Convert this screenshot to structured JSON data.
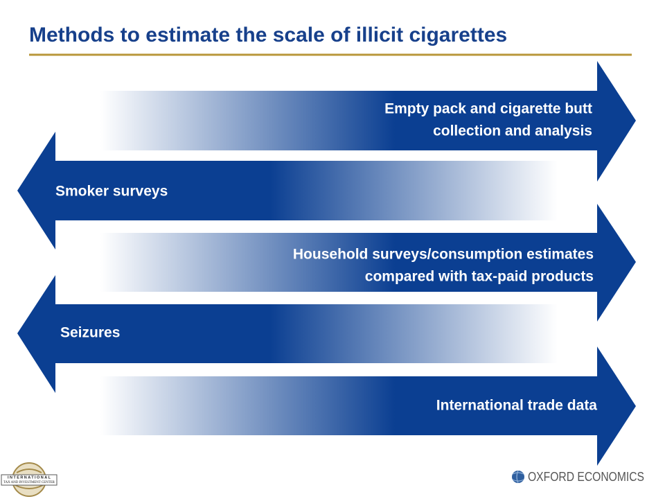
{
  "title": "Methods to estimate the scale of illicit cigarettes",
  "arrows": [
    {
      "lines": [
        "Empty pack and cigarette butt",
        "collection and analysis"
      ]
    },
    {
      "lines": [
        "Smoker surveys"
      ]
    },
    {
      "lines": [
        "Household surveys/consumption estimates",
        "compared with tax-paid products"
      ]
    },
    {
      "lines": [
        "Seizures"
      ]
    },
    {
      "lines": [
        "International trade data"
      ]
    }
  ],
  "logos": {
    "left": [
      "INTERNATIONAL",
      "TAX AND INVESTMENT CENTER"
    ],
    "right": "OXFORD ECONOMICS"
  }
}
